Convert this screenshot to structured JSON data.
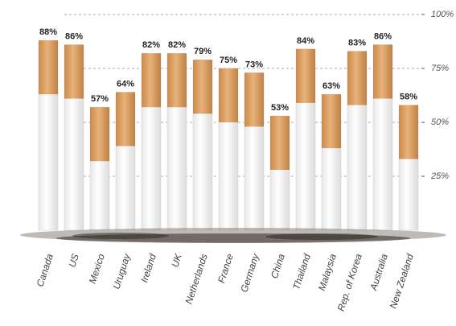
{
  "chart_data": {
    "type": "bar",
    "categories": [
      "Canada",
      "US",
      "Mexico",
      "Uruguay",
      "Ireland",
      "UK",
      "Netherlands",
      "France",
      "Germany",
      "China",
      "Thailand",
      "Malaysia",
      "Rep. of Korea",
      "Australia",
      "New Zealand"
    ],
    "values": [
      88,
      86,
      57,
      64,
      82,
      82,
      79,
      75,
      73,
      53,
      84,
      63,
      83,
      86,
      58
    ],
    "value_labels": [
      "88%",
      "86%",
      "57%",
      "64%",
      "82%",
      "82%",
      "79%",
      "75%",
      "73%",
      "53%",
      "84%",
      "63%",
      "83%",
      "86%",
      "58%"
    ],
    "color": "#d9a066",
    "ylim": [
      0,
      100
    ],
    "yticks": [
      {
        "value": 25,
        "label": "25%"
      },
      {
        "value": 50,
        "label": "50%"
      },
      {
        "value": 75,
        "label": "75%"
      },
      {
        "value": 100,
        "label": "100%"
      }
    ],
    "grid": true
  }
}
